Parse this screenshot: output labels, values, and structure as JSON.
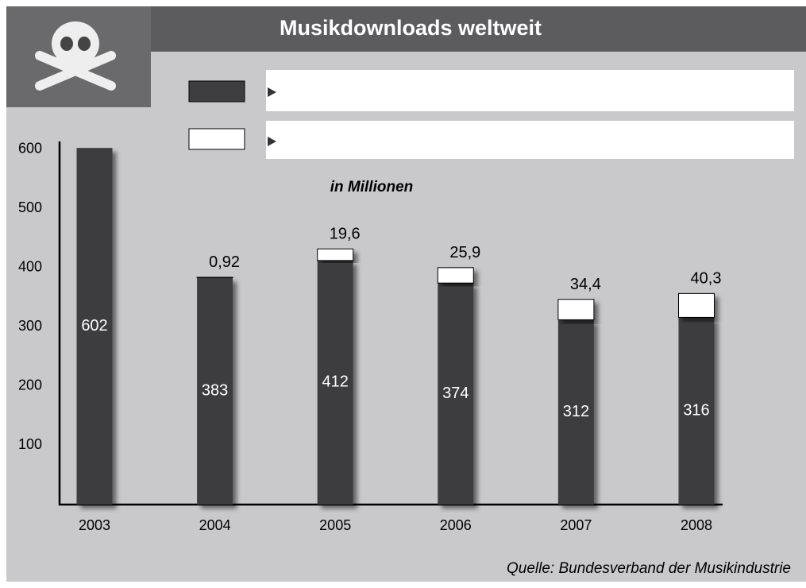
{
  "chart_data": {
    "type": "stacked-bar",
    "title": "Musikdownloads weltweit",
    "subtitle": "in Millionen",
    "source": "Quelle: Bundesverband der Musikindustrie",
    "categories": [
      "2003",
      "2004",
      "2005",
      "2006",
      "2007",
      "2008"
    ],
    "series": [
      {
        "color": "#3e3e41",
        "values": [
          602,
          383,
          412,
          374,
          312,
          316
        ]
      },
      {
        "color": "#ffffff",
        "values": [
          null,
          0.92,
          19.6,
          25.9,
          34.4,
          40.3
        ],
        "value_labels": [
          null,
          "0,92",
          "19,6",
          "25,9",
          "34,4",
          "40,3"
        ]
      }
    ],
    "ylim": [
      0,
      613
    ],
    "yticks": [
      100,
      200,
      300,
      400,
      500,
      600
    ]
  }
}
